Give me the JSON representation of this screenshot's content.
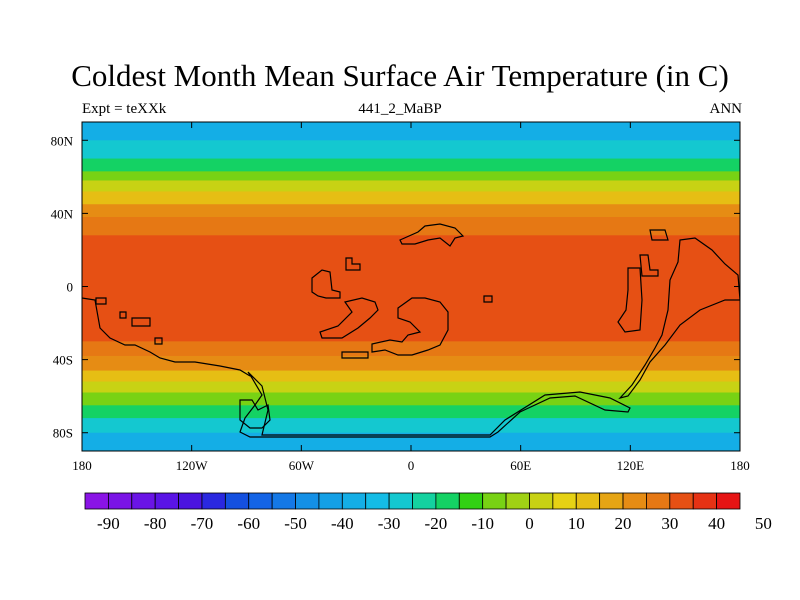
{
  "title": "Coldest Month Mean Surface Air Temperature (in C)",
  "subtitle_left": "Expt = teXXk",
  "subtitle_center": "441_2_MaBP",
  "subtitle_right": "ANN",
  "map": {
    "lon_range": [
      -180,
      180
    ],
    "lat_range": [
      -90,
      90
    ],
    "x_ticks": [
      {
        "lon": -180,
        "label": "180"
      },
      {
        "lon": -120,
        "label": "120W"
      },
      {
        "lon": -60,
        "label": "60W"
      },
      {
        "lon": 0,
        "label": "0"
      },
      {
        "lon": 60,
        "label": "60E"
      },
      {
        "lon": 120,
        "label": "120E"
      },
      {
        "lon": 180,
        "label": "180"
      }
    ],
    "y_ticks": [
      {
        "lat": 80,
        "label": "80N"
      },
      {
        "lat": 40,
        "label": "40N"
      },
      {
        "lat": 0,
        "label": "0"
      },
      {
        "lat": -40,
        "label": "40S"
      },
      {
        "lat": -80,
        "label": "80S"
      }
    ],
    "temperature_bands_by_lat": [
      {
        "lat_from": 90,
        "lat_to": 80,
        "temp": -40
      },
      {
        "lat_from": 80,
        "lat_to": 70,
        "temp": -30
      },
      {
        "lat_from": 70,
        "lat_to": 63,
        "temp": -20
      },
      {
        "lat_from": 63,
        "lat_to": 58,
        "temp": -10
      },
      {
        "lat_from": 58,
        "lat_to": 52,
        "temp": 0
      },
      {
        "lat_from": 52,
        "lat_to": 45,
        "temp": 10
      },
      {
        "lat_from": 45,
        "lat_to": 38,
        "temp": 20
      },
      {
        "lat_from": 38,
        "lat_to": 28,
        "temp": 25
      },
      {
        "lat_from": 28,
        "lat_to": -30,
        "temp": 30
      },
      {
        "lat_from": -30,
        "lat_to": -38,
        "temp": 25
      },
      {
        "lat_from": -38,
        "lat_to": -46,
        "temp": 20
      },
      {
        "lat_from": -46,
        "lat_to": -52,
        "temp": 10
      },
      {
        "lat_from": -52,
        "lat_to": -58,
        "temp": 0
      },
      {
        "lat_from": -58,
        "lat_to": -65,
        "temp": -10
      },
      {
        "lat_from": -65,
        "lat_to": -72,
        "temp": -20
      },
      {
        "lat_from": -72,
        "lat_to": -80,
        "temp": -30
      },
      {
        "lat_from": -80,
        "lat_to": -90,
        "temp": -40
      }
    ]
  },
  "colorbar": {
    "colors": [
      "#8a14e6",
      "#7a14e6",
      "#6a14e6",
      "#5a14e6",
      "#4b14e0",
      "#2a28e0",
      "#1450e0",
      "#1464e6",
      "#1478e6",
      "#1490e6",
      "#14a0e6",
      "#14aee6",
      "#14bce6",
      "#14c8d0",
      "#14d2a0",
      "#14d264",
      "#32d214",
      "#78d214",
      "#a0d214",
      "#c8d214",
      "#e6d214",
      "#e6be14",
      "#e6a514",
      "#e68c14",
      "#e67814",
      "#e65014",
      "#e63214",
      "#e61414"
    ],
    "labels": [
      "-90",
      "-80",
      "-70",
      "-60",
      "-50",
      "-40",
      "-30",
      "-20",
      "-10",
      "0",
      "10",
      "20",
      "30",
      "40",
      "50"
    ]
  }
}
